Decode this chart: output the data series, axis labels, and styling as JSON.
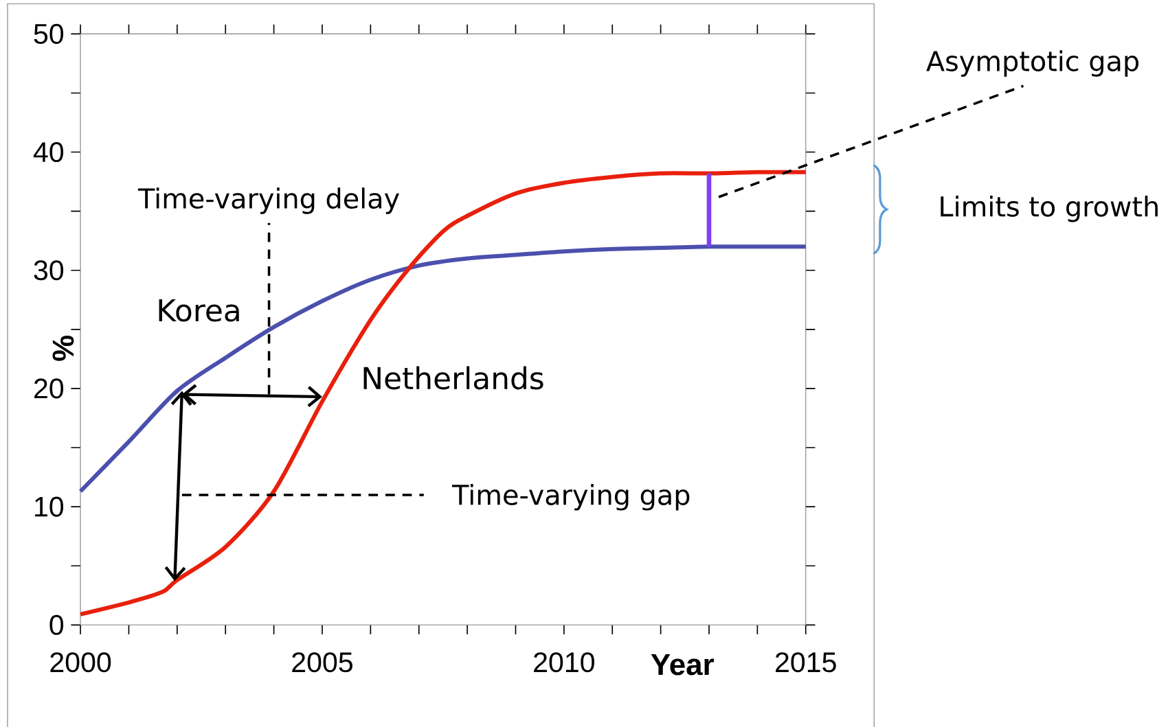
{
  "chart_data": {
    "type": "line",
    "xlabel": "Year",
    "ylabel": "%",
    "xlim": [
      2000,
      2015
    ],
    "ylim": [
      0,
      50
    ],
    "xticks": [
      2000,
      {
        "value": 2001,
        "label": null
      },
      {
        "value": 2002,
        "label": null
      },
      {
        "value": 2003,
        "label": null
      },
      {
        "value": 2004,
        "label": null
      },
      2005,
      {
        "value": 2006,
        "label": null
      },
      {
        "value": 2007,
        "label": null
      },
      {
        "value": 2008,
        "label": null
      },
      {
        "value": 2009,
        "label": null
      },
      2010,
      {
        "value": 2011,
        "label": null
      },
      {
        "value": 2012,
        "label": null
      },
      {
        "value": 2013,
        "label": null
      },
      {
        "value": 2014,
        "label": null
      },
      2015
    ],
    "yticks": [
      0,
      {
        "value": 5,
        "label": null
      },
      10,
      {
        "value": 15,
        "label": null
      },
      20,
      {
        "value": 25,
        "label": null
      },
      30,
      {
        "value": 35,
        "label": null
      },
      40,
      {
        "value": 45,
        "label": null
      },
      50
    ],
    "series": [
      {
        "name": "Korea",
        "color": "#4b50ae",
        "x": [
          2000,
          2001,
          2002,
          2003,
          2004,
          2005,
          2006,
          2007,
          2008,
          2009,
          2010,
          2011,
          2012,
          2013,
          2014,
          2015
        ],
        "values": [
          11.3,
          15.5,
          19.8,
          22.6,
          25.2,
          27.4,
          29.2,
          30.4,
          31.0,
          31.3,
          31.6,
          31.8,
          31.9,
          32.0,
          32.0,
          32.0
        ]
      },
      {
        "name": "Netherlands",
        "color": "#e8200c",
        "x": [
          2000,
          2001,
          2001.7,
          2002,
          2003,
          2004,
          2005,
          2006,
          2006.8,
          2007.5,
          2008,
          2009,
          2010,
          2011,
          2012,
          2013,
          2014,
          2015
        ],
        "values": [
          0.9,
          1.9,
          2.8,
          3.8,
          6.6,
          11.3,
          18.9,
          25.8,
          30.2,
          33.3,
          34.6,
          36.5,
          37.4,
          37.9,
          38.2,
          38.2,
          38.3,
          38.3
        ]
      }
    ],
    "annotations": [
      "Time-varying delay",
      "Time-varying gap",
      "Asymptotic gap",
      "Limits to growth"
    ],
    "legend": false,
    "grid": false,
    "marker": "none",
    "line_style": "solid"
  }
}
